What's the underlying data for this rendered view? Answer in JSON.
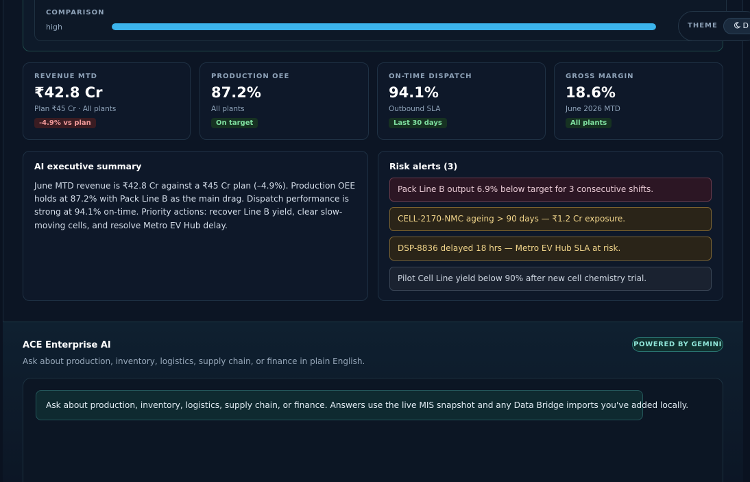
{
  "comparison": {
    "label": "COMPARISON",
    "level": "high",
    "fill_percent": 100
  },
  "theme": {
    "label": "THEME",
    "button_icon": "moon-icon",
    "button_text": "D"
  },
  "kpis": [
    {
      "title": "REVENUE MTD",
      "value": "₹42.8 Cr",
      "sub": "Plan ₹45 Cr · All plants",
      "badge": "-4.9% vs plan",
      "badge_color": "#f29a9a"
    },
    {
      "title": "PRODUCTION OEE",
      "value": "87.2%",
      "sub": "All plants",
      "badge": "On target",
      "badge_color": "#7fe0a0"
    },
    {
      "title": "ON-TIME DISPATCH",
      "value": "94.1%",
      "sub": "Outbound SLA",
      "badge": "Last 30 days",
      "badge_color": "#7fe0a0"
    },
    {
      "title": "GROSS MARGIN",
      "value": "18.6%",
      "sub": "June 2026 MTD",
      "badge": "All plants",
      "badge_color": "#7fe0a0"
    }
  ],
  "summary": {
    "title": "AI executive summary",
    "text": "June MTD revenue is ₹42.8 Cr against a ₹45 Cr plan (–4.9%). Production OEE holds at 87.2% with Pack Line B as the main drag. Dispatch performance is strong at 94.1% on-time. Priority actions: recover Line B yield, clear slow-moving cells, and resolve Metro EV Hub delay."
  },
  "risk_alerts": {
    "title": "Risk alerts (3)",
    "items": [
      {
        "text": "Pack Line B output 6.9% below target for 3 consecutive shifts.",
        "severity": "red"
      },
      {
        "text": "CELL-2170-NMC ageing > 90 days — ₹1.2 Cr exposure.",
        "severity": "amber"
      },
      {
        "text": "DSP-8836 delayed 18 hrs — Metro EV Hub SLA at risk.",
        "severity": "amber"
      },
      {
        "text": "Pilot Cell Line yield below 90% after new cell chemistry trial.",
        "severity": "neutral"
      }
    ]
  },
  "assistant": {
    "title": "ACE Enterprise AI",
    "subtitle": "Ask about production, inventory, logistics, supply chain, or finance in plain English.",
    "badge": "POWERED BY GEMINI",
    "intro_message": "Ask about production, inventory, logistics, supply chain, or finance. Answers use the live MIS snapshot and any Data Bridge imports you've added locally."
  },
  "colors": {
    "accent": "#3bb4ec",
    "background": "#0a1220",
    "alert_red": "#6a3a4a",
    "alert_amber": "#7d6430"
  }
}
